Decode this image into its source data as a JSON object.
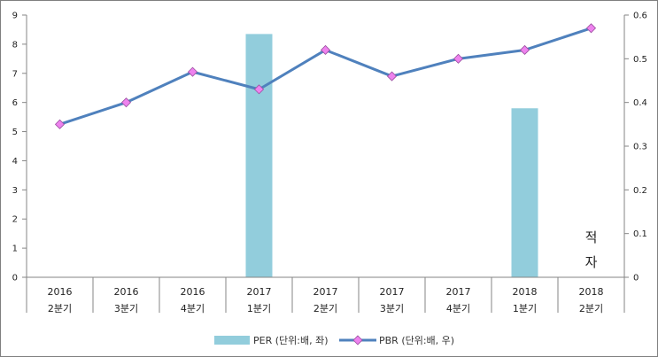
{
  "chart_data": {
    "type": "bar",
    "categories": [
      [
        "2016",
        "2분기"
      ],
      [
        "2016",
        "3분기"
      ],
      [
        "2016",
        "4분기"
      ],
      [
        "2017",
        "1분기"
      ],
      [
        "2017",
        "2분기"
      ],
      [
        "2017",
        "3분기"
      ],
      [
        "2017",
        "4분기"
      ],
      [
        "2018",
        "1분기"
      ],
      [
        "2018",
        "2분기"
      ]
    ],
    "series": [
      {
        "name": "PER (단위:배, 좌)",
        "type": "bar",
        "axis": "left",
        "color": "#92CDDC",
        "values": [
          null,
          null,
          null,
          8.35,
          null,
          null,
          null,
          5.8,
          null
        ]
      },
      {
        "name": "PBR (단위:배, 우)",
        "type": "line",
        "axis": "right",
        "color": "#4F81BD",
        "marker_color": "#EE82EE",
        "values": [
          0.35,
          0.4,
          0.47,
          0.43,
          0.52,
          0.46,
          0.5,
          0.52,
          0.57
        ]
      }
    ],
    "ylim_left": [
      0,
      9
    ],
    "yticks_left": [
      "0",
      "1",
      "2",
      "3",
      "4",
      "5",
      "6",
      "7",
      "8",
      "9"
    ],
    "ylim_right": [
      0,
      0.6
    ],
    "yticks_right": [
      "0",
      "0.1",
      "0.2",
      "0.3",
      "0.4",
      "0.5",
      "0.6"
    ],
    "annotation": [
      "적",
      "자"
    ],
    "legend_position": "bottom",
    "grid": false
  }
}
